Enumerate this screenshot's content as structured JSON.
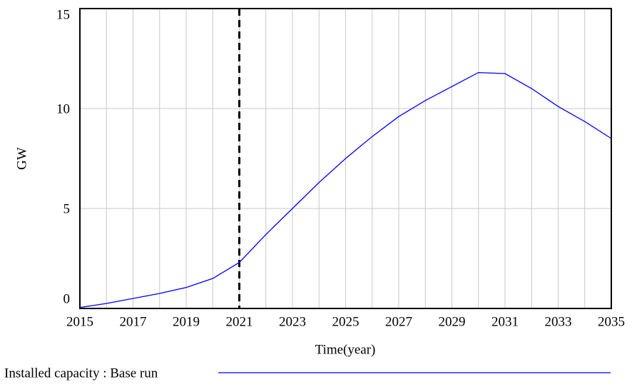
{
  "chart_data": {
    "type": "line",
    "x_label": "Time(year)",
    "y_label": "GW",
    "x": [
      2015,
      2016,
      2017,
      2018,
      2019,
      2020,
      2021,
      2022,
      2023,
      2024,
      2025,
      2026,
      2027,
      2028,
      2029,
      2030,
      2031,
      2032,
      2033,
      2034,
      2035
    ],
    "series": [
      {
        "name": "Installed capacity : Base run",
        "color": "#0000ff",
        "values": [
          0.05,
          0.25,
          0.5,
          0.75,
          1.05,
          1.5,
          2.3,
          3.7,
          5.0,
          6.3,
          7.5,
          8.6,
          9.6,
          10.4,
          11.1,
          11.8,
          11.75,
          11.0,
          10.1,
          9.35,
          8.5
        ]
      }
    ],
    "xlim": [
      2015,
      2035
    ],
    "xticks": [
      2015,
      2017,
      2019,
      2021,
      2023,
      2025,
      2027,
      2029,
      2031,
      2033,
      2035
    ],
    "x_minor_ticks": [
      2016,
      2018,
      2020,
      2022,
      2024,
      2026,
      2028,
      2030,
      2032,
      2034
    ],
    "ylim": [
      0,
      15
    ],
    "yticks": [
      0,
      5,
      10,
      15
    ],
    "marker_x": 2021,
    "grid": true
  }
}
